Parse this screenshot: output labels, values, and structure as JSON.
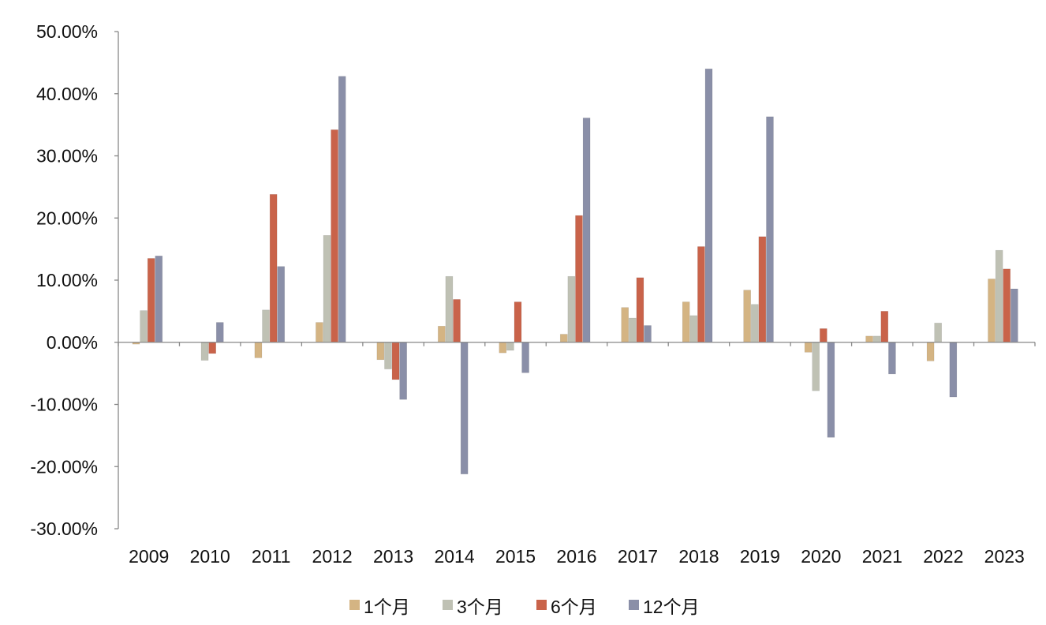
{
  "chart_data": {
    "type": "bar",
    "title": "",
    "xlabel": "",
    "ylabel": "",
    "ylim": [
      -30,
      50
    ],
    "y_ticks": [
      -30,
      -20,
      -10,
      0,
      10,
      20,
      30,
      40,
      50
    ],
    "y_tick_labels": [
      "-30.00%",
      "-20.00%",
      "-10.00%",
      "0.00%",
      "10.00%",
      "20.00%",
      "30.00%",
      "40.00%",
      "50.00%"
    ],
    "grid": false,
    "legend_position": "bottom",
    "categories": [
      "2009",
      "2010",
      "2011",
      "2012",
      "2013",
      "2014",
      "2015",
      "2016",
      "2017",
      "2018",
      "2019",
      "2020",
      "2021",
      "2022",
      "2023"
    ],
    "series": [
      {
        "name": "1个月",
        "color": "#d4b483",
        "values": [
          -0.3,
          0.0,
          -2.5,
          3.2,
          -2.8,
          2.6,
          -1.7,
          1.3,
          5.6,
          6.5,
          8.4,
          -1.6,
          1.0,
          -3.0,
          10.2
        ]
      },
      {
        "name": "3个月",
        "color": "#bfc1b4",
        "values": [
          5.1,
          -2.9,
          5.2,
          17.2,
          -4.3,
          10.6,
          -1.3,
          10.6,
          3.9,
          4.3,
          6.1,
          -7.8,
          1.0,
          3.1,
          14.8
        ]
      },
      {
        "name": "6个月",
        "color": "#c9634a",
        "values": [
          13.5,
          -1.8,
          23.8,
          34.2,
          -6.0,
          6.9,
          6.5,
          20.4,
          10.4,
          15.4,
          17.0,
          2.2,
          5.0,
          0.0,
          11.8
        ]
      },
      {
        "name": "12个月",
        "color": "#8a8fa8",
        "values": [
          13.9,
          3.2,
          12.2,
          42.8,
          -9.2,
          -21.2,
          -4.9,
          36.1,
          2.7,
          44.0,
          36.3,
          -15.3,
          -5.1,
          -8.8,
          8.6
        ]
      }
    ]
  }
}
